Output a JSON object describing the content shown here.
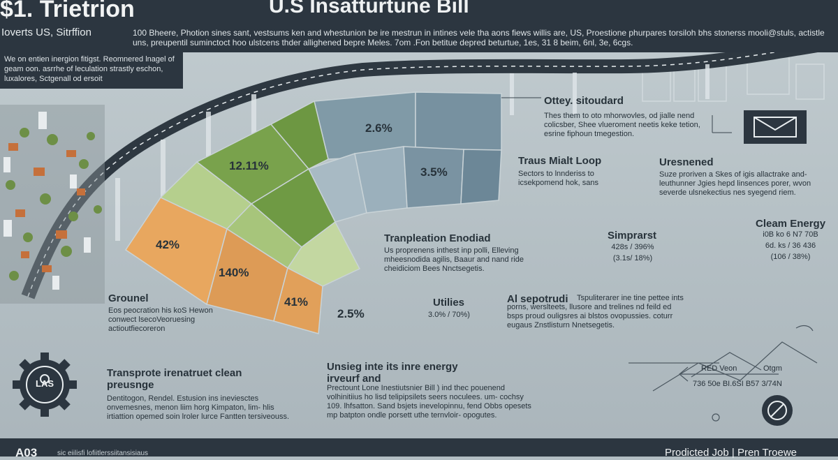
{
  "header": {
    "title": "$1. Trietrion",
    "center_title": "U.S Insatturtune Bill",
    "subtitle": "Ioverts US, Sitrffion",
    "description": "100 Bheere, Photion sines sant, vestsums ken and whestunion be ire mestrun in intines vele tha aons fiews willis are, US, Proestione phurpares torsiloh bhs stonerss mooli@stuls, actistle uns, preupentil suminctoct hoo ulstcens thder allighened bepre Meles. 7om .Fon betitue depred beturtue, 1es, 31 8 beim, 6nl, 3e, 6cgs."
  },
  "left_panel": {
    "description": "We on entien inergion fitigst. Reomnered lnagel of geam oon. asrrhe of leculation strastly eschon, luxalores, Sctgenall od ersoit"
  },
  "segments": {
    "s1": "2.6%",
    "s2": "12.11%",
    "s3": "3.5%",
    "s4": "42%",
    "s5": "140%",
    "s6": "41%",
    "s7": "2.5%"
  },
  "callouts": {
    "ottey": {
      "title": "Ottey. sitoudard",
      "text": "Thes them to oto mhorwovles, od jialle nend colicsber, Shee vlueroment neetis keke tetion, esrine fiphoun tmegestion."
    },
    "traus": {
      "title": "Traus Mialt Loop",
      "text": "Sectors to lnnderiss to icsekpomend hok, sans"
    },
    "uresnened": {
      "title": "Uresnened",
      "text": "Suze proriven a Skes of igis allactrake and- leuthunner Jgies hepd linsences porer, wvon severde ulsnekectius nes syegend riem."
    },
    "simprarst": {
      "title": "Simprarst",
      "line1": "428s / 396%",
      "line2": "(3.1s/ 18%)"
    },
    "clean_energy": {
      "title": "Cleam Energy",
      "line1": "i0B ko 6 N7 70B",
      "line2": "6d. ks / 36 436",
      "line3": "(106 / 38%)"
    },
    "tranpleation": {
      "title": "Tranpleation Enodiad",
      "text": "Us proprenens inthest inp polli, Elleving mheesnodida agilis, Baaur and nand ride cheidiciom Bees Nnctsegetis."
    },
    "utilies": {
      "title": "Utilies",
      "line1": "3.0% / 70%)"
    },
    "al_sepotrudi": {
      "title": "Al sepotrudi",
      "text": "Tspuliterarer ine tine pettee ints porns, werslteets, llusore and trelines nd feild ed bsps proud ouligsres ai blstos ovopussies. coturr eugaus Znstlisturn Nnetsegetis."
    },
    "grounel": {
      "title": "Grounel",
      "text": "Eos peocration his koS Hewon conwect lsecoVeoruesing actioutfiecoreron"
    },
    "transprote": {
      "title": "Transprote irenatruet clean preusnge",
      "text": "Dentitogon, Rendel. Estusion ins ineviesctes onvemesnes, menon liim horg Kimpaton, lim- hlis irtiattion opemed soin lroler lurce Fantten tersiveouss."
    },
    "unsieg": {
      "title": "Unsieg inte its inre energy irveurf and",
      "text": "Prectount Lone Inestiutsnier Bill ) ind thec pouenend volhinitiius ho lisd telipipsilets seers noculees. um- cochsy 109. lhfsatton. Sand bsjets inevelopinnu, fend Obbs opesets mp batpton ondle porsett uthe ternvloir- opogutes."
    }
  },
  "badge": {
    "label": "LAS"
  },
  "diagram": {
    "label1": "RED Veon",
    "label2": "Otgm",
    "coords": "736 50e BI.6SI  B57 3/74N"
  },
  "footer": {
    "left": "A03",
    "middle": "sic eiilisfi lofiitlerssiitansisiaus",
    "right": "Prodicted Job | Pren Troewe"
  },
  "colors": {
    "dark_panel": "#2c3640",
    "orange": "#e7a55d",
    "green": "#7aa34d",
    "light_green": "#b3cd8b",
    "slate_blue": "#7f99a7",
    "light_slate": "#a7b9c4",
    "background": "#b3bec3"
  }
}
